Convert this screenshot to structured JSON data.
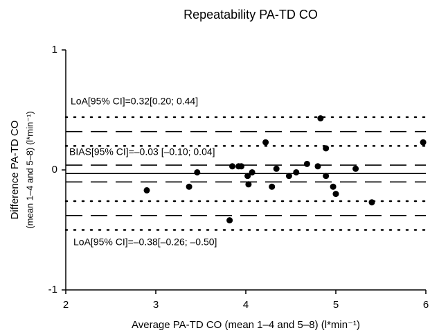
{
  "chart_data": {
    "type": "scatter",
    "title": "Repeatability PA-TD CO",
    "x_label": "Average PA-TD CO (mean 1–4 and 5–8) (l*min⁻¹)",
    "y_label": [
      "Difference PA-TD CO",
      "(mean 1–4 and 5–8) (l*min⁻¹)"
    ],
    "xlim": [
      2,
      6
    ],
    "ylim": [
      -1,
      1
    ],
    "xticks": [
      2,
      3,
      4,
      5,
      6
    ],
    "yticks": [
      -1,
      0,
      1
    ],
    "color": "#000000",
    "x": [
      2.9,
      3.37,
      3.46,
      3.82,
      3.85,
      3.92,
      3.95,
      4.02,
      4.03,
      4.07,
      4.22,
      4.29,
      4.34,
      4.48,
      4.56,
      4.68,
      4.8,
      4.83,
      4.89,
      4.89,
      4.97,
      5.0,
      5.22,
      5.4,
      5.97
    ],
    "values": [
      -0.17,
      -0.14,
      -0.02,
      -0.42,
      0.03,
      0.03,
      0.03,
      -0.05,
      -0.12,
      -0.02,
      0.23,
      -0.14,
      0.01,
      -0.05,
      -0.02,
      0.05,
      0.03,
      0.43,
      0.18,
      -0.05,
      -0.14,
      -0.2,
      0.01,
      -0.27,
      0.23
    ],
    "reference_lines": [
      {
        "value": 0.44,
        "style": "dotted"
      },
      {
        "value": 0.32,
        "style": "dashed"
      },
      {
        "value": 0.2,
        "style": "dotted"
      },
      {
        "value": 0.04,
        "style": "dashed"
      },
      {
        "value": -0.03,
        "style": "solid"
      },
      {
        "value": -0.1,
        "style": "dashed"
      },
      {
        "value": -0.26,
        "style": "dotted"
      },
      {
        "value": -0.38,
        "style": "dashed"
      },
      {
        "value": -0.5,
        "style": "dotted"
      }
    ],
    "annotations": [
      "LoA[95% CI]=0.32[0.20; 0.44]",
      "BIAS[95% CI]=–0.03 [–0.10; 0.04]",
      "LoA[95% CI]=–0.38[–0.26; –0.50]"
    ]
  }
}
